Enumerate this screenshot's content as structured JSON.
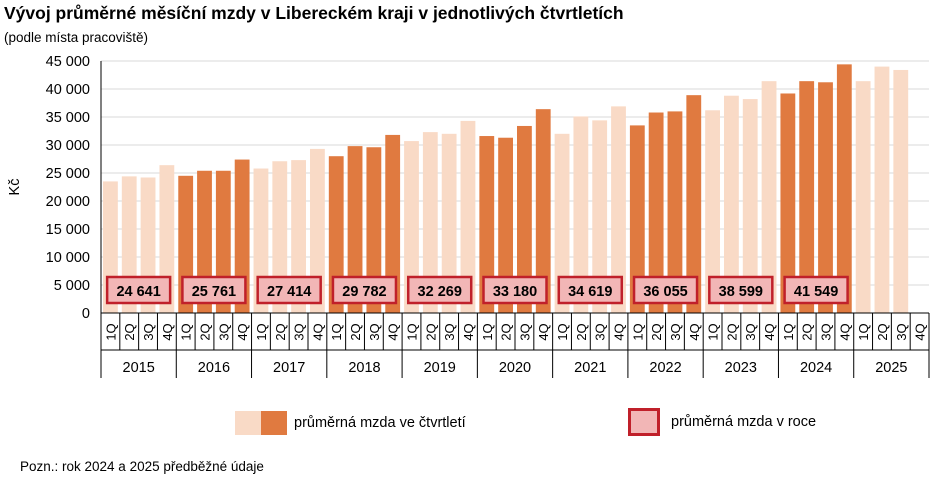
{
  "chart_data": {
    "type": "bar",
    "title": "Vývoj průměrné měsíční mzdy v Libereckém kraji v jednotlivých čtvrtletích",
    "subtitle": "(podle místa pracoviště)",
    "ylabel": "Kč",
    "ylim": [
      0,
      45000
    ],
    "yticks": [
      0,
      5000,
      10000,
      15000,
      20000,
      25000,
      30000,
      35000,
      40000,
      45000
    ],
    "ytick_labels": [
      "0",
      "5 000",
      "10 000",
      "15 000",
      "20 000",
      "25 000",
      "30 000",
      "35 000",
      "40 000",
      "45 000"
    ],
    "grid": true,
    "quarter_labels": [
      "1Q",
      "2Q",
      "3Q",
      "4Q"
    ],
    "years": [
      {
        "year": "2015",
        "quarters": [
          23500,
          24400,
          24200,
          26400
        ],
        "annual": 24641,
        "annual_label": "24 641"
      },
      {
        "year": "2016",
        "quarters": [
          24500,
          25400,
          25400,
          27400
        ],
        "annual": 25761,
        "annual_label": "25 761"
      },
      {
        "year": "2017",
        "quarters": [
          25800,
          27100,
          27300,
          29300
        ],
        "annual": 27414,
        "annual_label": "27 414"
      },
      {
        "year": "2018",
        "quarters": [
          28000,
          29800,
          29600,
          31800
        ],
        "annual": 29782,
        "annual_label": "29 782"
      },
      {
        "year": "2019",
        "quarters": [
          30700,
          32300,
          32000,
          34300
        ],
        "annual": 32269,
        "annual_label": "32 269"
      },
      {
        "year": "2020",
        "quarters": [
          31600,
          31300,
          33400,
          36400
        ],
        "annual": 33180,
        "annual_label": "33 180"
      },
      {
        "year": "2021",
        "quarters": [
          32000,
          35100,
          34400,
          36900
        ],
        "annual": 34619,
        "annual_label": "34 619"
      },
      {
        "year": "2022",
        "quarters": [
          33500,
          35800,
          36000,
          38900
        ],
        "annual": 36055,
        "annual_label": "36 055"
      },
      {
        "year": "2023",
        "quarters": [
          36200,
          38800,
          38200,
          41400
        ],
        "annual": 38599,
        "annual_label": "38 599"
      },
      {
        "year": "2024",
        "quarters": [
          39200,
          41400,
          41200,
          44400
        ],
        "annual": 41549,
        "annual_label": "41 549"
      },
      {
        "year": "2025",
        "quarters": [
          41400,
          44000,
          43400,
          null
        ],
        "annual": null,
        "annual_label": null
      }
    ],
    "legend": {
      "bars": "průměrná mzda ve čtvrtletí",
      "annual": "průměrná mzda v roce"
    },
    "legend_position": "bottom",
    "colors": {
      "light": "#f9dac6",
      "dark": "#e07a40",
      "box_fill": "#f2b6b6",
      "box_border": "#c0202a",
      "grid": "#d9d9d9",
      "axis": "#000000"
    }
  },
  "note": "Pozn.: rok 2024 a 2025 předběžné údaje"
}
